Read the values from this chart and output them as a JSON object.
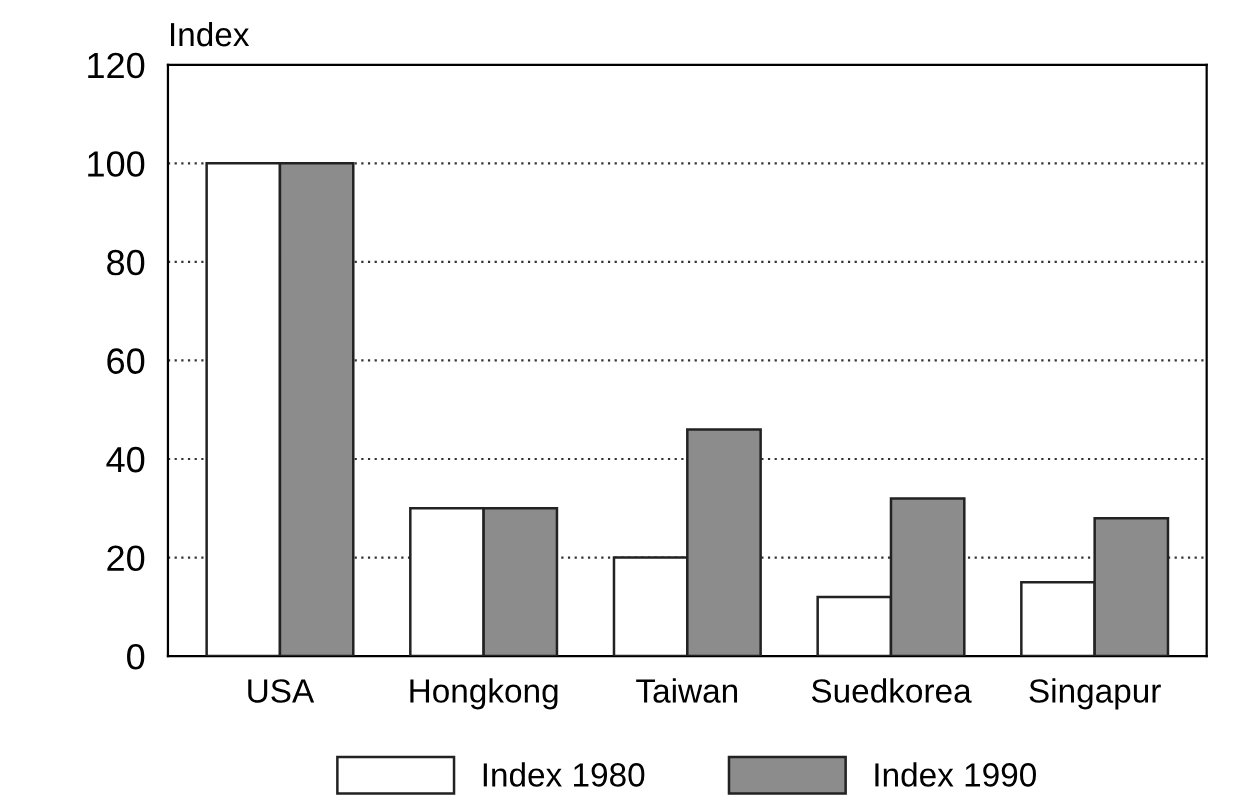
{
  "chart_data": {
    "type": "bar",
    "ylabel": "Index",
    "categories": [
      "USA",
      "Hongkong",
      "Taiwan",
      "Suedkorea",
      "Singapur"
    ],
    "series": [
      {
        "name": "Index 1980",
        "color": "#ffffff",
        "values": [
          100,
          30,
          20,
          12,
          15
        ]
      },
      {
        "name": "Index 1990",
        "color": "#8c8c8c",
        "values": [
          100,
          30,
          46,
          32,
          28
        ]
      }
    ],
    "ylim": [
      0,
      120
    ],
    "yticks": [
      0,
      20,
      40,
      60,
      80,
      100,
      120
    ],
    "grid": "y",
    "legend": "bottom"
  }
}
